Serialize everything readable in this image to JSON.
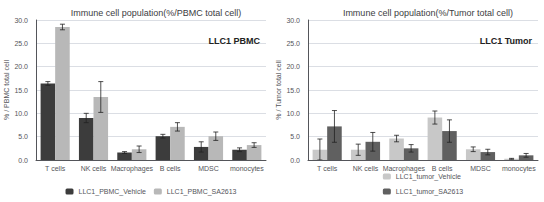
{
  "chart_data": [
    {
      "type": "bar",
      "title": "Immune cell population(%/PBMC total cell)",
      "annotation": "LLC1 PBMC",
      "ylabel": "% / PBMC total cell",
      "categories": [
        "T cells",
        "NK cells",
        "Macrophages",
        "B cells",
        "MDSC",
        "monocytes"
      ],
      "series": [
        {
          "name": "LLC1_PBMC_Vehicle",
          "color": "#3c3c3c",
          "values": [
            16.4,
            9.0,
            1.6,
            5.1,
            2.8,
            2.2
          ],
          "errors": [
            0.4,
            1.0,
            0.2,
            0.4,
            1.1,
            0.4
          ]
        },
        {
          "name": "LLC1_PBMC_SA2613",
          "color": "#b8b8b8",
          "values": [
            28.5,
            13.5,
            2.3,
            7.1,
            5.1,
            3.2
          ],
          "errors": [
            0.6,
            3.3,
            0.7,
            0.9,
            0.9,
            0.5
          ]
        }
      ],
      "ylim": [
        0,
        30.0
      ],
      "yticks": [
        {
          "value": 0.0,
          "label": "0.0"
        },
        {
          "value": 5.0,
          "label": "5.0"
        },
        {
          "value": 10.0,
          "label": "10.0"
        },
        {
          "value": 15.0,
          "label": "15.0"
        },
        {
          "value": 20.0,
          "label": "20.0"
        },
        {
          "value": 25.0,
          "label": "25.0"
        },
        {
          "value": 30.0,
          "label": "30.0"
        }
      ],
      "grid": true,
      "legend": "bottom"
    },
    {
      "type": "bar",
      "title": "Immune cell population(%/Tumor total cell)",
      "annotation": "LLC1 Tumor",
      "ylabel": "% / Tumor total cell",
      "categories": [
        "T cells",
        "NK cells",
        "Macrophages",
        "B cells",
        "MDSC",
        "monocytes"
      ],
      "series": [
        {
          "name": "LLC1_tumor_Vehicle",
          "color": "#c8c8c8",
          "values": [
            2.2,
            2.2,
            4.6,
            9.1,
            2.3,
            0.25
          ],
          "errors": [
            2.3,
            1.2,
            0.7,
            1.4,
            0.5,
            0.1
          ]
        },
        {
          "name": "LLC1_tumor_SA2613",
          "color": "#606060",
          "values": [
            7.2,
            3.9,
            2.5,
            6.2,
            1.7,
            1.0
          ],
          "errors": [
            3.4,
            2.0,
            0.8,
            2.4,
            0.6,
            0.4
          ]
        }
      ],
      "ylim": [
        0,
        30.0
      ],
      "yticks": [
        {
          "value": 0.0,
          "label": "0.0"
        },
        {
          "value": 5.0,
          "label": "5.0"
        },
        {
          "value": 10.0,
          "label": "10.0"
        },
        {
          "value": 15.0,
          "label": "15.0"
        },
        {
          "value": 20.0,
          "label": "20.0"
        },
        {
          "value": 25.0,
          "label": "25.0"
        },
        {
          "value": 30.0,
          "label": "30.0"
        }
      ],
      "grid": true,
      "legend": "bottom"
    }
  ]
}
